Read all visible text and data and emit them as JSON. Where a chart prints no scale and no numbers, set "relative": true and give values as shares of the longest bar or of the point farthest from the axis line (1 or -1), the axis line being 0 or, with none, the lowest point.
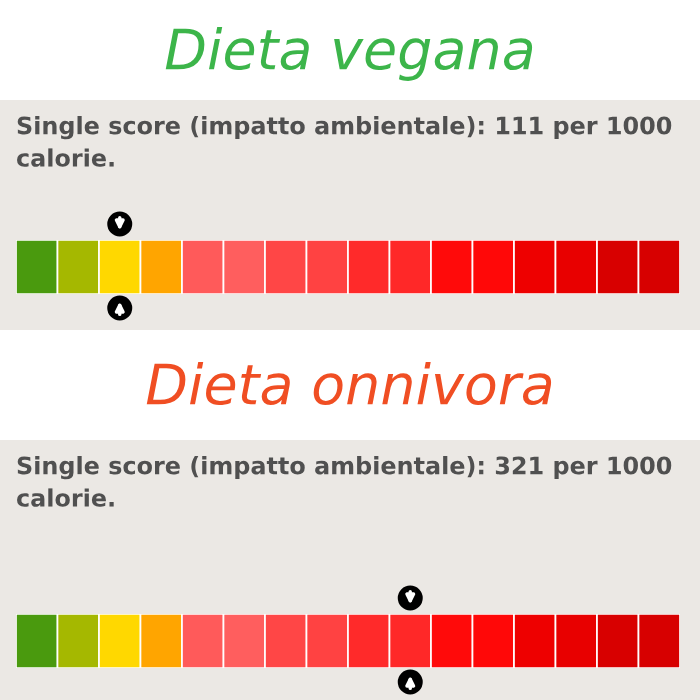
{
  "chart_data": [
    {
      "type": "bar",
      "orientation": "horizontal",
      "stacked": true,
      "relative": true,
      "title": "Dieta vegana",
      "subtitle": "Single score (impatto ambientale): 111 per 1000 calorie.",
      "categories": [
        null
      ],
      "series": [
        {
          "color": "#4a9a0e",
          "values": [
            0.0625
          ]
        },
        {
          "color": "#a5b800",
          "values": [
            0.0625
          ]
        },
        {
          "color": "#ffd800",
          "values": [
            0.0625
          ]
        },
        {
          "color": "#ffa500",
          "values": [
            0.0625
          ]
        },
        {
          "color": "#ff5a5a",
          "values": [
            0.0625
          ]
        },
        {
          "color": "#ff5e5e",
          "values": [
            0.0625
          ]
        },
        {
          "color": "#ff4646",
          "values": [
            0.0625
          ]
        },
        {
          "color": "#ff4242",
          "values": [
            0.0625
          ]
        },
        {
          "color": "#ff2a2a",
          "values": [
            0.0625
          ]
        },
        {
          "color": "#ff2828",
          "values": [
            0.0625
          ]
        },
        {
          "color": "#ff0a0a",
          "values": [
            0.0625
          ]
        },
        {
          "color": "#ff0808",
          "values": [
            0.0625
          ]
        },
        {
          "color": "#ee0000",
          "values": [
            0.0625
          ]
        },
        {
          "color": "#e80000",
          "values": [
            0.0625
          ]
        },
        {
          "color": "#d80000",
          "values": [
            0.0625
          ]
        },
        {
          "color": "#d70000",
          "values": [
            0.0625
          ]
        }
      ]
    },
    {
      "type": "bar",
      "orientation": "horizontal",
      "stacked": true,
      "relative": true,
      "title": "Dieta onnivora",
      "subtitle": "Single score (impatto ambientale): 321 per 1000 calorie.",
      "categories": [
        null
      ],
      "series": [
        {
          "color": "#4a9a0e",
          "values": [
            0.0625
          ]
        },
        {
          "color": "#a5b800",
          "values": [
            0.0625
          ]
        },
        {
          "color": "#ffd800",
          "values": [
            0.0625
          ]
        },
        {
          "color": "#ffa500",
          "values": [
            0.0625
          ]
        },
        {
          "color": "#ff5a5a",
          "values": [
            0.0625
          ]
        },
        {
          "color": "#ff5e5e",
          "values": [
            0.0625
          ]
        },
        {
          "color": "#ff4646",
          "values": [
            0.0625
          ]
        },
        {
          "color": "#ff4242",
          "values": [
            0.0625
          ]
        },
        {
          "color": "#ff2a2a",
          "values": [
            0.0625
          ]
        },
        {
          "color": "#ff2828",
          "values": [
            0.0625
          ]
        },
        {
          "color": "#ff0a0a",
          "values": [
            0.0625
          ]
        },
        {
          "color": "#ff0808",
          "values": [
            0.0625
          ]
        },
        {
          "color": "#ee0000",
          "values": [
            0.0625
          ]
        },
        {
          "color": "#e80000",
          "values": [
            0.0625
          ]
        },
        {
          "color": "#d80000",
          "values": [
            0.0625
          ]
        },
        {
          "color": "#d70000",
          "values": [
            0.0625
          ]
        }
      ]
    }
  ]
}
